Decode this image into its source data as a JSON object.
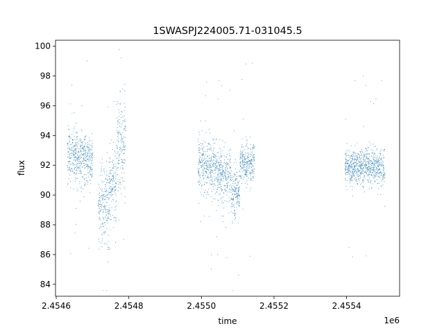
{
  "chart_data": {
    "type": "scatter",
    "title": "1SWASPJ224005.71-031045.5",
    "xlabel": "time",
    "ylabel": "flux",
    "x_offset_label": "1e6",
    "xlim": [
      2454598,
      2455546
    ],
    "ylim": [
      83.2,
      100.4
    ],
    "x_ticks": [
      2454600,
      2454800,
      2455000,
      2455200,
      2455400
    ],
    "x_tick_labels": [
      "2.4546",
      "2.4548",
      "2.4550",
      "2.4552",
      "2.4554"
    ],
    "y_ticks": [
      84,
      86,
      88,
      90,
      92,
      94,
      96,
      98,
      100
    ],
    "y_tick_labels": [
      "84",
      "86",
      "88",
      "90",
      "92",
      "94",
      "96",
      "98",
      "100"
    ],
    "grid": false,
    "marker_color": "#1f77b4",
    "marker_size": "tiny",
    "segments": [
      {
        "x_start": 2454630,
        "x_end": 2454685,
        "flux_mean": 92.6,
        "flux_spread": 0.9
      },
      {
        "x_start": 2454685,
        "x_end": 2454700,
        "flux_mean": 92.2,
        "flux_spread": 0.8
      },
      {
        "x_start": 2454715,
        "x_end": 2454745,
        "flux_mean": 89.3,
        "flux_spread": 1.4
      },
      {
        "x_start": 2454745,
        "x_end": 2454765,
        "flux_mean": 90.5,
        "flux_spread": 1.4
      },
      {
        "x_start": 2454765,
        "x_end": 2454790,
        "flux_mean": 93.5,
        "flux_spread": 1.6
      },
      {
        "x_start": 2454990,
        "x_end": 2455040,
        "flux_mean": 92.0,
        "flux_spread": 0.9
      },
      {
        "x_start": 2455040,
        "x_end": 2455080,
        "flux_mean": 91.3,
        "flux_spread": 0.9
      },
      {
        "x_start": 2455080,
        "x_end": 2455105,
        "flux_mean": 90.2,
        "flux_spread": 0.8
      },
      {
        "x_start": 2455105,
        "x_end": 2455145,
        "flux_mean": 92.2,
        "flux_spread": 0.7
      },
      {
        "x_start": 2455395,
        "x_end": 2455505,
        "flux_mean": 91.9,
        "flux_spread": 0.6
      }
    ]
  }
}
